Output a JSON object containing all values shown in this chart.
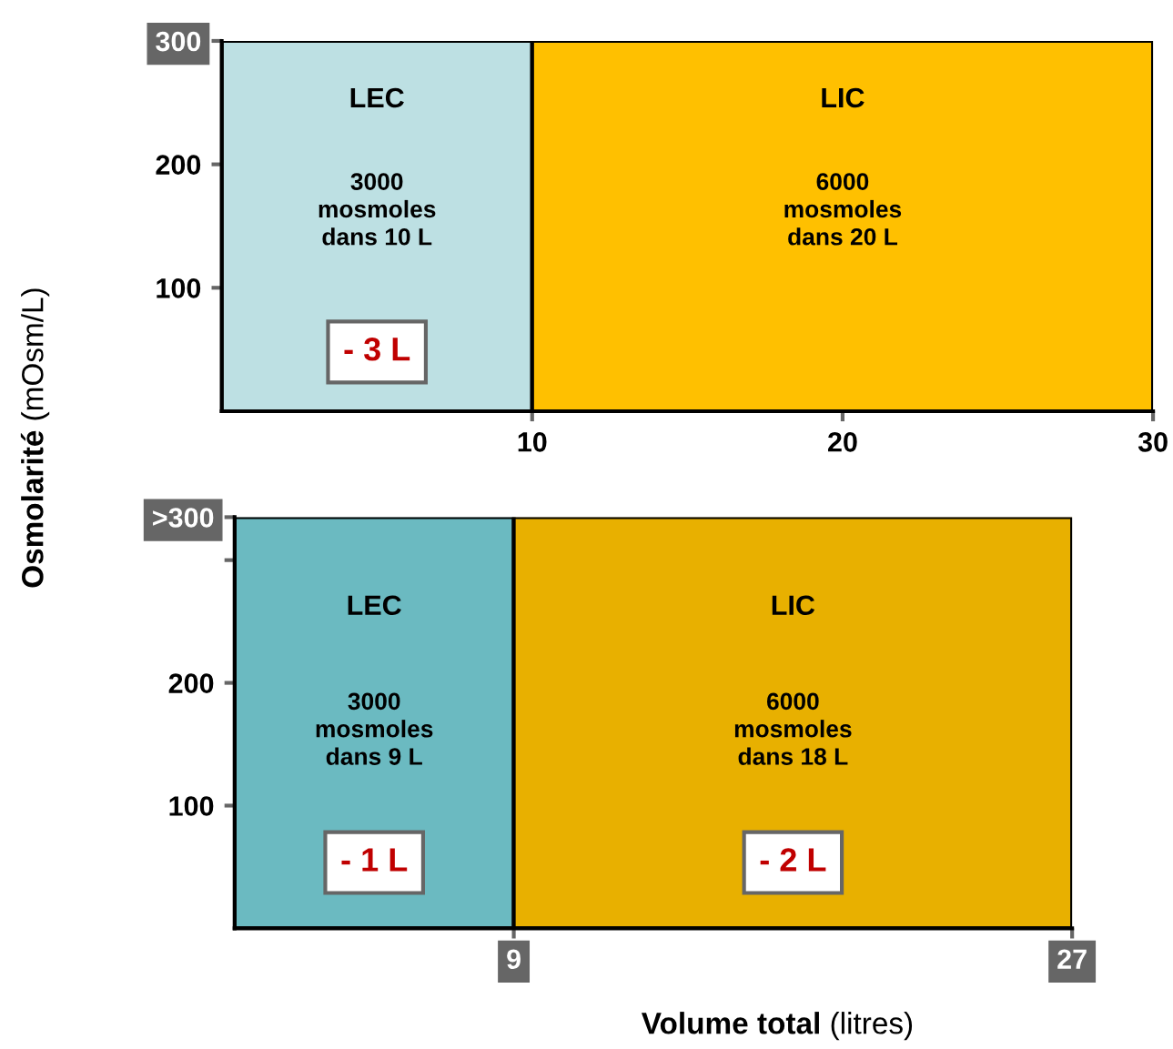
{
  "chart_data": [
    {
      "type": "histogram",
      "ylabel": "Osmolarité (mOsm/L)",
      "bins": [
        0,
        10,
        30
      ],
      "values": [
        300,
        300
      ],
      "colors": [
        "#bde0e3",
        "#ffc000"
      ],
      "xlim": [
        0,
        30
      ],
      "xticks": [
        10,
        20,
        30
      ],
      "ylim": [
        0,
        300
      ],
      "yticks": [
        100,
        200,
        300
      ],
      "grid": false,
      "annotations": [
        "LEC",
        "3000\nmosmoles\ndans 10 L",
        "- 3 L",
        "LIC",
        "6000\nmosmoles\ndans 20 L"
      ]
    },
    {
      "type": "histogram",
      "xlabel": "Volume total (litres)",
      "bins": [
        0,
        9,
        27
      ],
      "values": [
        335,
        335
      ],
      "colors": [
        "#6bbac1",
        "#e8b000"
      ],
      "xlim": [
        0,
        27
      ],
      "xticks": [
        9,
        27
      ],
      "ylim": [
        0,
        335
      ],
      "yticks": [
        100,
        200,
        {
          "value": 300,
          "label": null
        },
        {
          "value": 335,
          "label": ">300"
        }
      ],
      "grid": false,
      "annotations": [
        "LEC",
        "3000\nmosmoles\ndans 9 L",
        "- 1 L",
        "LIC",
        "6000\nmosmoles\ndans 18 L",
        "- 2 L"
      ]
    }
  ]
}
